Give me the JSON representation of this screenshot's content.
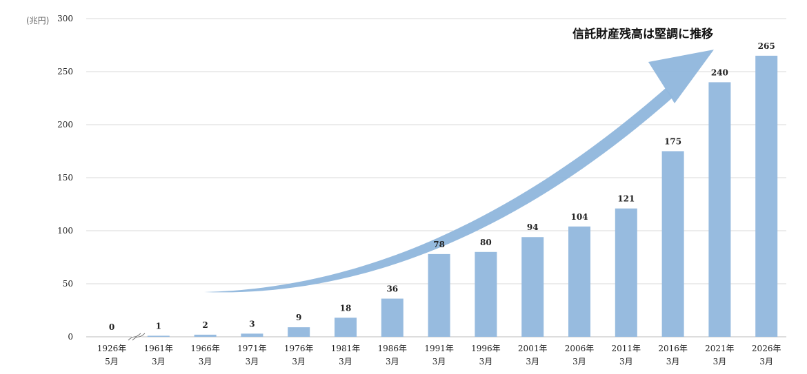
{
  "chart_data": {
    "type": "bar",
    "unit_label": "(兆円)",
    "yticks": [
      "0",
      "50",
      "100",
      "150",
      "200",
      "250",
      "300"
    ],
    "ylim": [
      0,
      300
    ],
    "categories": [
      [
        "1926年",
        "5月"
      ],
      [
        "1961年",
        "3月"
      ],
      [
        "1966年",
        "3月"
      ],
      [
        "1971年",
        "3月"
      ],
      [
        "1976年",
        "3月"
      ],
      [
        "1981年",
        "3月"
      ],
      [
        "1986年",
        "3月"
      ],
      [
        "1991年",
        "3月"
      ],
      [
        "1996年",
        "3月"
      ],
      [
        "2001年",
        "3月"
      ],
      [
        "2006年",
        "3月"
      ],
      [
        "2011年",
        "3月"
      ],
      [
        "2016年",
        "3月"
      ],
      [
        "2021年",
        "3月"
      ],
      [
        "2026年",
        "3月"
      ]
    ],
    "values": [
      0,
      1,
      2,
      3,
      9,
      18,
      36,
      78,
      80,
      94,
      104,
      121,
      175,
      240,
      265
    ],
    "annotation": "信託財産残高は堅調に推移",
    "bar_color": "#97bbdf",
    "arrow_color": "#8fb6dc",
    "grid": true,
    "axis_break_after_index": 0
  }
}
